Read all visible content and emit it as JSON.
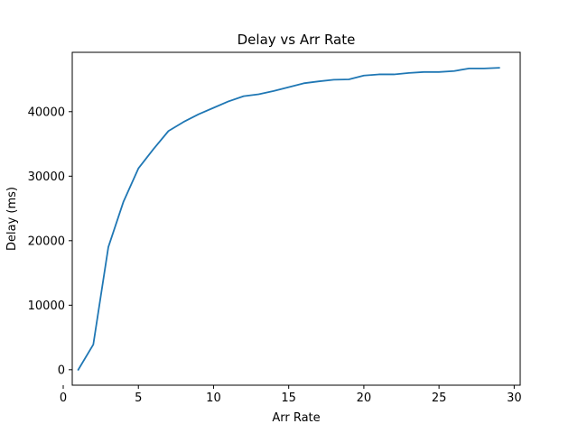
{
  "chart_data": {
    "type": "line",
    "title": "Delay vs Arr Rate",
    "xlabel": "Arr Rate",
    "ylabel": "Delay (ms)",
    "xlim": [
      0.6,
      30.4
    ],
    "ylim": [
      -2400,
      49200
    ],
    "xticks": [
      0,
      5,
      10,
      15,
      20,
      25,
      30
    ],
    "yticks": [
      0,
      10000,
      20000,
      30000,
      40000
    ],
    "grid": false,
    "legend": "none",
    "line_color": "#1f77b4",
    "series": [
      {
        "x": [
          1,
          2,
          3,
          4,
          5,
          6,
          7,
          8,
          9,
          10,
          11,
          12,
          13,
          14,
          15,
          16,
          17,
          18,
          19,
          20,
          21,
          22,
          23,
          24,
          25,
          26,
          27,
          28,
          29
        ],
        "values": [
          0,
          3900,
          19000,
          26000,
          31200,
          34200,
          37000,
          38400,
          39600,
          40600,
          41600,
          42400,
          42700,
          43200,
          43800,
          44400,
          44700,
          44950,
          45000,
          45600,
          45780,
          45780,
          46000,
          46150,
          46150,
          46300,
          46700,
          46700,
          46800
        ]
      }
    ]
  }
}
